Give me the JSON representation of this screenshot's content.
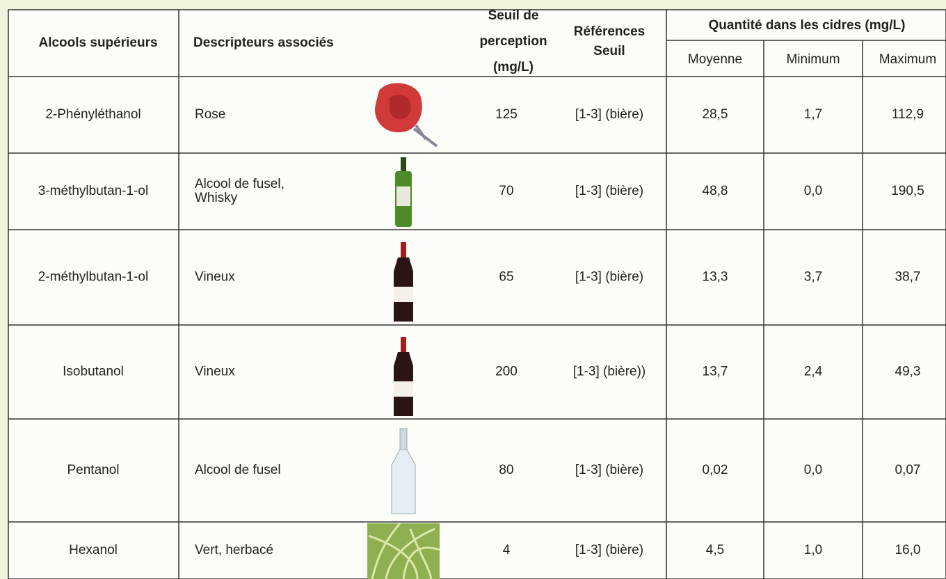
{
  "table": {
    "headers": {
      "name": "Alcools supérieurs",
      "descriptor": "Descripteurs associés",
      "threshold": [
        "Seuil de",
        "perception",
        "(mg/L)"
      ],
      "reference": [
        "Références",
        "Seuil"
      ],
      "quantity": "Quantité dans les cidres (mg/L)",
      "mean": "Moyenne",
      "min": "Minimum",
      "max": "Maximum"
    },
    "rows": [
      {
        "name": "2-Phényléthanol",
        "descriptor": [
          "Rose"
        ],
        "threshold": "125",
        "reference": "[1-3] (bière)",
        "mean": "28,5",
        "min": "1,7",
        "max": "112,9"
      },
      {
        "name": "3-méthylbutan-1-ol",
        "descriptor": [
          "Alcool de fusel,",
          "Whisky"
        ],
        "threshold": "70",
        "reference": "[1-3] (bière)",
        "mean": "48,8",
        "min": "0,0",
        "max": "190,5"
      },
      {
        "name": "2-méthylbutan-1-ol",
        "descriptor": [
          "Vineux"
        ],
        "threshold": "65",
        "reference": "[1-3] (bière)",
        "mean": "13,3",
        "min": "3,7",
        "max": "38,7"
      },
      {
        "name": "Isobutanol",
        "descriptor": [
          "Vineux"
        ],
        "threshold": "200",
        "reference": "[1-3] (bière))",
        "mean": "13,7",
        "min": "2,4",
        "max": "49,3"
      },
      {
        "name": "Pentanol",
        "descriptor": [
          "Alcool de fusel"
        ],
        "threshold": "80",
        "reference": "[1-3] (bière)",
        "mean": "0,02",
        "min": "0,0",
        "max": "0,07"
      },
      {
        "name": "Hexanol",
        "descriptor": [
          "Vert, herbacé"
        ],
        "threshold": "4",
        "reference": "[1-3] (bière)",
        "mean": "4,5",
        "min": "1,0",
        "max": "16,0"
      }
    ]
  }
}
